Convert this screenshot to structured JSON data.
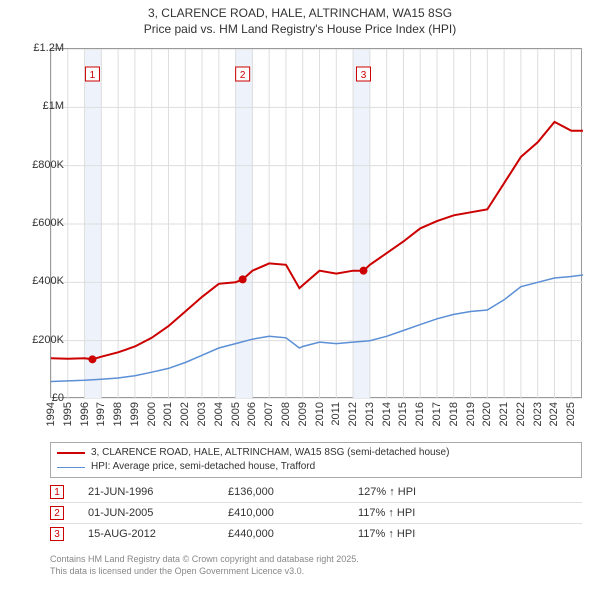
{
  "title_line1": "3, CLARENCE ROAD, HALE, ALTRINCHAM, WA15 8SG",
  "title_line2": "Price paid vs. HM Land Registry's House Price Index (HPI)",
  "chart": {
    "type": "line",
    "background_color": "#ffffff",
    "grid_color": "#dddddd",
    "axis_color": "#999999",
    "band_color": "#eef3fb",
    "sale_bands": [
      1996.47,
      2005.42,
      2012.62
    ],
    "xlim": [
      1994,
      2025.7
    ],
    "ylim": [
      0,
      1200000
    ],
    "ytick_step": 200000,
    "ytick_labels": [
      "£0",
      "£200K",
      "£400K",
      "£600K",
      "£800K",
      "£1M",
      "£1.2M"
    ],
    "xticks": [
      1994,
      1995,
      1996,
      1997,
      1998,
      1999,
      2000,
      2001,
      2002,
      2003,
      2004,
      2005,
      2006,
      2007,
      2008,
      2009,
      2010,
      2011,
      2012,
      2013,
      2014,
      2015,
      2016,
      2017,
      2018,
      2019,
      2020,
      2021,
      2022,
      2023,
      2024,
      2025
    ],
    "series_price": {
      "label": "3, CLARENCE ROAD, HALE, ALTRINCHAM, WA15 8SG (semi-detached house)",
      "color": "#cc0000",
      "line_width": 2,
      "data": [
        [
          1994,
          140000
        ],
        [
          1995,
          138000
        ],
        [
          1996,
          140000
        ],
        [
          1996.47,
          136000
        ],
        [
          1997,
          145000
        ],
        [
          1998,
          160000
        ],
        [
          1999,
          180000
        ],
        [
          2000,
          210000
        ],
        [
          2001,
          250000
        ],
        [
          2002,
          300000
        ],
        [
          2003,
          350000
        ],
        [
          2004,
          395000
        ],
        [
          2005,
          400000
        ],
        [
          2005.42,
          410000
        ],
        [
          2006,
          440000
        ],
        [
          2007,
          465000
        ],
        [
          2008,
          460000
        ],
        [
          2008.8,
          380000
        ],
        [
          2009,
          390000
        ],
        [
          2010,
          440000
        ],
        [
          2011,
          430000
        ],
        [
          2012,
          440000
        ],
        [
          2012.62,
          440000
        ],
        [
          2013,
          460000
        ],
        [
          2014,
          500000
        ],
        [
          2015,
          540000
        ],
        [
          2016,
          585000
        ],
        [
          2017,
          610000
        ],
        [
          2018,
          630000
        ],
        [
          2019,
          640000
        ],
        [
          2020,
          650000
        ],
        [
          2021,
          740000
        ],
        [
          2022,
          830000
        ],
        [
          2023,
          880000
        ],
        [
          2024,
          950000
        ],
        [
          2025,
          920000
        ],
        [
          2025.7,
          920000
        ]
      ],
      "sale_markers": [
        {
          "n": 1,
          "x": 1996.47,
          "y": 136000
        },
        {
          "n": 2,
          "x": 2005.42,
          "y": 410000
        },
        {
          "n": 3,
          "x": 2012.62,
          "y": 440000
        }
      ]
    },
    "series_hpi": {
      "label": "HPI: Average price, semi-detached house, Trafford",
      "color": "#5b8fd6",
      "line_width": 1.5,
      "data": [
        [
          1994,
          60000
        ],
        [
          1995,
          62000
        ],
        [
          1996,
          64000
        ],
        [
          1997,
          68000
        ],
        [
          1998,
          72000
        ],
        [
          1999,
          80000
        ],
        [
          2000,
          92000
        ],
        [
          2001,
          105000
        ],
        [
          2002,
          125000
        ],
        [
          2003,
          150000
        ],
        [
          2004,
          175000
        ],
        [
          2005,
          190000
        ],
        [
          2006,
          205000
        ],
        [
          2007,
          215000
        ],
        [
          2008,
          210000
        ],
        [
          2008.8,
          175000
        ],
        [
          2009,
          180000
        ],
        [
          2010,
          195000
        ],
        [
          2011,
          190000
        ],
        [
          2012,
          195000
        ],
        [
          2013,
          200000
        ],
        [
          2014,
          215000
        ],
        [
          2015,
          235000
        ],
        [
          2016,
          255000
        ],
        [
          2017,
          275000
        ],
        [
          2018,
          290000
        ],
        [
          2019,
          300000
        ],
        [
          2020,
          305000
        ],
        [
          2021,
          340000
        ],
        [
          2022,
          385000
        ],
        [
          2023,
          400000
        ],
        [
          2024,
          415000
        ],
        [
          2025,
          420000
        ],
        [
          2025.7,
          425000
        ]
      ]
    }
  },
  "legend": {
    "rows": [
      {
        "color": "#cc0000",
        "label_key": "chart.series_price.label"
      },
      {
        "color": "#5b8fd6",
        "label_key": "chart.series_hpi.label"
      }
    ]
  },
  "sales": [
    {
      "n": "1",
      "date": "21-JUN-1996",
      "price": "£136,000",
      "hpi": "127% ↑ HPI"
    },
    {
      "n": "2",
      "date": "01-JUN-2005",
      "price": "£410,000",
      "hpi": "117% ↑ HPI"
    },
    {
      "n": "3",
      "date": "15-AUG-2012",
      "price": "£440,000",
      "hpi": "117% ↑ HPI"
    }
  ],
  "footer_line1": "Contains HM Land Registry data © Crown copyright and database right 2025.",
  "footer_line2": "This data is licensed under the Open Government Licence v3.0.",
  "marker_color": "#cc0000",
  "table_border_color": "#e0e0e0",
  "title_fontsize": 12,
  "axis_fontsize": 11,
  "legend_fontsize": 10
}
